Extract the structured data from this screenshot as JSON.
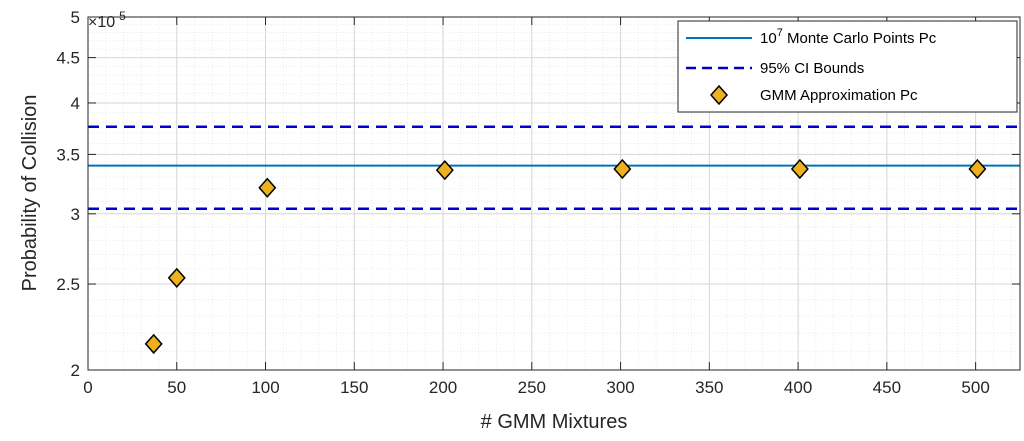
{
  "chart_data": {
    "type": "scatter",
    "xlabel": "# GMM Mixtures",
    "ylabel": "Probability of Collision",
    "xlim": [
      0,
      525
    ],
    "ylim": [
      2.0,
      5.0
    ],
    "yscale": "log",
    "y_multiplier": "×10",
    "y_multiplier_exp": "-5",
    "xticks": [
      "0",
      "50",
      "100",
      "150",
      "200",
      "250",
      "300",
      "350",
      "400",
      "450",
      "500"
    ],
    "yticks": [
      "2",
      "2.5",
      "3",
      "3.5",
      "4",
      "4.5",
      "5"
    ],
    "grid": true,
    "minor_grid": true,
    "legend_position": "top-right",
    "series": [
      {
        "name_base": "10",
        "name_sup": "7",
        "name_rest": " Monte Carlo Points Pc",
        "type": "hline",
        "y": 3.4,
        "color": "#0072BD",
        "style": "solid"
      },
      {
        "name": "95% CI Bounds",
        "type": "hline-pair",
        "y": [
          3.04,
          3.76
        ],
        "color": "#0000CC",
        "style": "dashed"
      },
      {
        "name": "GMM Approximation Pc",
        "type": "scatter",
        "marker": "diamond",
        "color": "#EDB120",
        "x": [
          37,
          50,
          101,
          201,
          301,
          401,
          501
        ],
        "y": [
          2.14,
          2.54,
          3.21,
          3.36,
          3.37,
          3.37,
          3.37
        ]
      }
    ]
  }
}
